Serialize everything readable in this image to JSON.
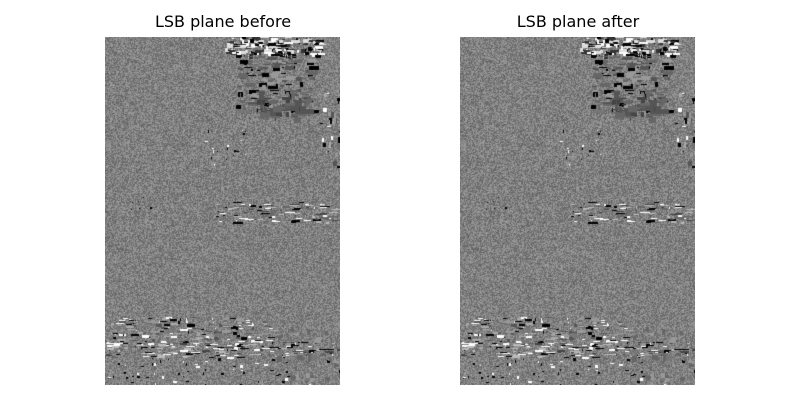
{
  "panels": [
    {
      "title": "LSB plane before"
    },
    {
      "title": "LSB plane after"
    }
  ],
  "colors": {
    "background": "#ffffff",
    "plane_gray": "#808080",
    "plane_dark": "#000000",
    "plane_light": "#ffffff"
  }
}
